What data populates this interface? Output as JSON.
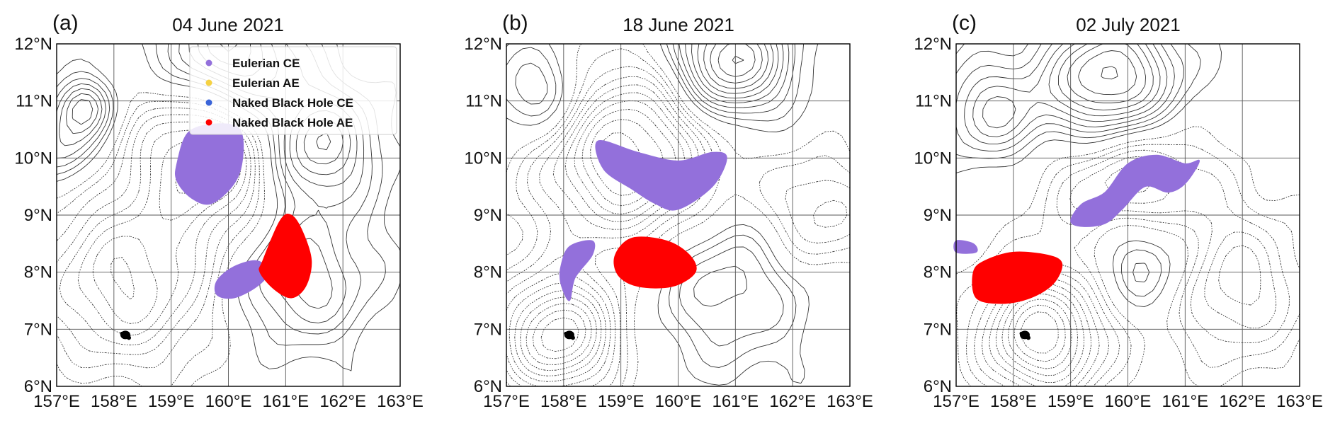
{
  "figure": {
    "panels": [
      {
        "label": "(a)",
        "title": "04 June 2021"
      },
      {
        "label": "(b)",
        "title": "18 June 2021"
      },
      {
        "label": "(c)",
        "title": "02 July 2021"
      }
    ],
    "legend": [
      {
        "name": "Eulerian CE",
        "color": "#9370DB"
      },
      {
        "name": "Eulerian AE",
        "color": "#F5D142"
      },
      {
        "name": "Naked Black Hole CE",
        "color": "#3A64D8"
      },
      {
        "name": "Naked Black Hole AE",
        "color": "#FF0000"
      }
    ]
  },
  "chart_data": [
    {
      "type": "contour_map",
      "label": "(a)",
      "title": "04 June 2021",
      "xlabel": "",
      "ylabel": "",
      "xlim": [
        157,
        163
      ],
      "ylim": [
        6,
        12
      ],
      "x_ticks": [
        "157°E",
        "158°E",
        "159°E",
        "160°E",
        "161°E",
        "162°E",
        "163°E"
      ],
      "y_ticks": [
        "6°N",
        "7°N",
        "8°N",
        "9°N",
        "10°N",
        "11°N",
        "12°N"
      ],
      "grid": true,
      "legend_position": "top-right",
      "eddies": [
        {
          "series": "Eulerian CE",
          "color": "#9370DB",
          "outline": [
            [
              159.1,
              9.9
            ],
            [
              159.3,
              10.45
            ],
            [
              159.8,
              10.6
            ],
            [
              160.2,
              10.5
            ],
            [
              160.25,
              10.0
            ],
            [
              160.1,
              9.55
            ],
            [
              159.7,
              9.2
            ],
            [
              159.35,
              9.3
            ],
            [
              159.1,
              9.6
            ]
          ]
        },
        {
          "series": "Eulerian CE",
          "color": "#9370DB",
          "outline": [
            [
              159.8,
              7.85
            ],
            [
              160.1,
              8.1
            ],
            [
              160.5,
              8.2
            ],
            [
              160.7,
              8.0
            ],
            [
              160.5,
              7.75
            ],
            [
              160.1,
              7.55
            ],
            [
              159.8,
              7.6
            ]
          ]
        },
        {
          "series": "Naked Black Hole AE",
          "color": "#FF0000",
          "outline": [
            [
              160.6,
              8.2
            ],
            [
              160.9,
              8.9
            ],
            [
              161.1,
              9.0
            ],
            [
              161.3,
              8.7
            ],
            [
              161.45,
              8.2
            ],
            [
              161.35,
              7.75
            ],
            [
              161.1,
              7.55
            ],
            [
              160.8,
              7.7
            ],
            [
              160.55,
              8.0
            ]
          ]
        }
      ],
      "black_marker": {
        "lon": 158.2,
        "lat": 6.9
      }
    },
    {
      "type": "contour_map",
      "label": "(b)",
      "title": "18 June 2021",
      "xlabel": "",
      "ylabel": "",
      "xlim": [
        157,
        163
      ],
      "ylim": [
        6,
        12
      ],
      "x_ticks": [
        "157°E",
        "158°E",
        "159°E",
        "160°E",
        "161°E",
        "162°E",
        "163°E"
      ],
      "y_ticks": [
        "6°N",
        "7°N",
        "8°N",
        "9°N",
        "10°N",
        "11°N",
        "12°N"
      ],
      "grid": true,
      "eddies": [
        {
          "series": "Eulerian CE",
          "color": "#9370DB",
          "outline": [
            [
              158.6,
              10.3
            ],
            [
              159.3,
              10.1
            ],
            [
              160.0,
              9.95
            ],
            [
              160.6,
              10.1
            ],
            [
              160.85,
              10.0
            ],
            [
              160.6,
              9.5
            ],
            [
              160.0,
              9.1
            ],
            [
              159.6,
              9.2
            ],
            [
              159.2,
              9.45
            ],
            [
              158.7,
              9.8
            ]
          ]
        },
        {
          "series": "Eulerian CE",
          "color": "#9370DB",
          "outline": [
            [
              157.95,
              8.1
            ],
            [
              158.1,
              8.45
            ],
            [
              158.5,
              8.55
            ],
            [
              158.5,
              8.3
            ],
            [
              158.2,
              7.9
            ],
            [
              158.1,
              7.5
            ],
            [
              157.95,
              7.8
            ]
          ]
        },
        {
          "series": "Naked Black Hole AE",
          "color": "#FF0000",
          "outline": [
            [
              158.9,
              8.3
            ],
            [
              159.2,
              8.6
            ],
            [
              159.8,
              8.55
            ],
            [
              160.2,
              8.3
            ],
            [
              160.3,
              8.0
            ],
            [
              159.9,
              7.75
            ],
            [
              159.3,
              7.75
            ],
            [
              158.95,
              7.95
            ]
          ]
        }
      ],
      "black_marker": {
        "lon": 158.1,
        "lat": 6.9
      }
    },
    {
      "type": "contour_map",
      "label": "(c)",
      "title": "02 July 2021",
      "xlabel": "",
      "ylabel": "",
      "xlim": [
        157,
        163
      ],
      "ylim": [
        6,
        12
      ],
      "x_ticks": [
        "157°E",
        "158°E",
        "159°E",
        "160°E",
        "161°E",
        "162°E",
        "163°E"
      ],
      "y_ticks": [
        "6°N",
        "7°N",
        "8°N",
        "9°N",
        "10°N",
        "11°N",
        "12°N"
      ],
      "grid": true,
      "eddies": [
        {
          "series": "Eulerian CE",
          "color": "#9370DB",
          "outline": [
            [
              159.0,
              8.9
            ],
            [
              159.2,
              9.2
            ],
            [
              159.6,
              9.4
            ],
            [
              160.0,
              9.9
            ],
            [
              160.5,
              10.05
            ],
            [
              161.0,
              9.9
            ],
            [
              161.25,
              9.95
            ],
            [
              161.0,
              9.55
            ],
            [
              160.7,
              9.4
            ],
            [
              160.3,
              9.5
            ],
            [
              159.9,
              9.1
            ],
            [
              159.6,
              8.85
            ],
            [
              159.2,
              8.8
            ]
          ]
        },
        {
          "series": "Eulerian CE",
          "color": "#9370DB",
          "outline": [
            [
              157.0,
              8.55
            ],
            [
              157.3,
              8.5
            ],
            [
              157.35,
              8.35
            ],
            [
              157.0,
              8.35
            ]
          ]
        },
        {
          "series": "Naked Black Hole AE",
          "color": "#FF0000",
          "outline": [
            [
              157.3,
              8.0
            ],
            [
              157.5,
              8.2
            ],
            [
              158.0,
              8.35
            ],
            [
              158.6,
              8.3
            ],
            [
              158.85,
              8.15
            ],
            [
              158.7,
              7.8
            ],
            [
              158.3,
              7.55
            ],
            [
              157.8,
              7.45
            ],
            [
              157.35,
              7.55
            ]
          ]
        }
      ],
      "black_marker": {
        "lon": 158.2,
        "lat": 6.9
      }
    }
  ]
}
